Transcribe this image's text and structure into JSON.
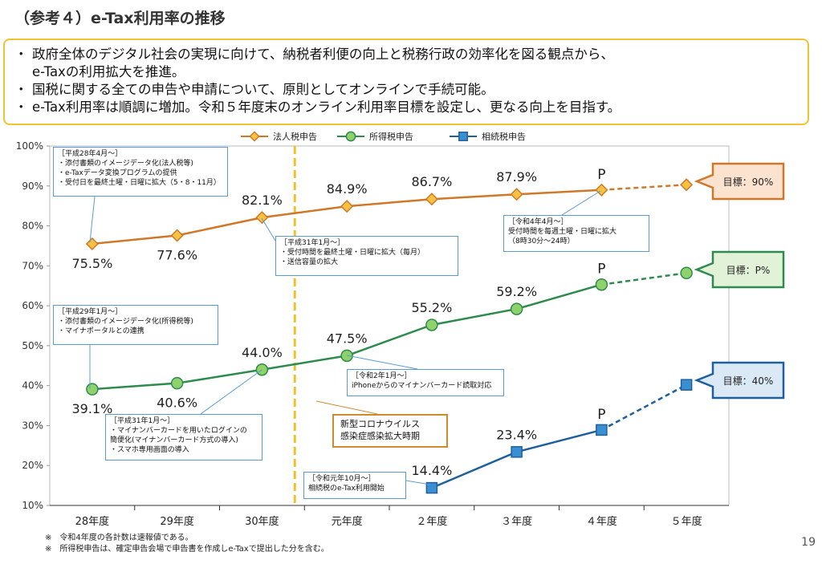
{
  "page": {
    "title": "（参考４）e-Tax利用率の推移",
    "page_number": "19",
    "bullets": [
      "政府全体のデジタル社会の実現に向けて、納税者利便の向上と税務行政の効率化を図る観点から、",
      "e-Taxの利用拡大を推進。",
      "国税に関する全ての申告や申請について、原則としてオンラインで手続可能。",
      "e-Tax利用率は順調に増加。令和５年度末のオンライン利用率目標を設定し、更なる向上を目指す。"
    ],
    "bullet_marker": "・",
    "notes": [
      "※　令和4年度の各計数は速報値である。",
      "※　所得税申告は、確定申告会場で申告書を作成しe-Taxで提出した分を含む。"
    ]
  },
  "chart_data": {
    "type": "line",
    "categories": [
      "28年度",
      "29年度",
      "30年度",
      "元年度",
      "２年度",
      "３年度",
      "４年度",
      "５年度"
    ],
    "ylim": [
      10,
      100
    ],
    "yticks": [
      "10%",
      "20%",
      "30%",
      "40%",
      "50%",
      "60%",
      "70%",
      "80%",
      "90%",
      "100%"
    ],
    "legend_position": "top",
    "series": [
      {
        "name": "法人税申告",
        "color": "#d0782a",
        "fill": "#f5c242",
        "marker": "diamond",
        "values": [
          75.5,
          77.6,
          82.1,
          84.9,
          86.7,
          87.9,
          89.0,
          90.3
        ],
        "labels": [
          "75.5%",
          "77.6%",
          "82.1%",
          "84.9%",
          "86.7%",
          "87.9%",
          "P",
          ""
        ],
        "dashed_from_index": 6
      },
      {
        "name": "所得税申告",
        "color": "#2e8b4e",
        "fill": "#8fd16a",
        "marker": "circle",
        "values": [
          39.1,
          40.6,
          44.0,
          47.5,
          55.2,
          59.2,
          65.3,
          68.2
        ],
        "labels": [
          "39.1%",
          "40.6%",
          "44.0%",
          "47.5%",
          "55.2%",
          "59.2%",
          "P",
          ""
        ],
        "dashed_from_index": 6
      },
      {
        "name": "相続税申告",
        "color": "#1f5f9e",
        "fill": "#3a8fd3",
        "marker": "square",
        "values": [
          null,
          null,
          null,
          null,
          14.4,
          23.4,
          28.9,
          40.2
        ],
        "labels": [
          "",
          "",
          "",
          "",
          "14.4%",
          "23.4%",
          "P",
          ""
        ],
        "dashed_from_index": 6
      }
    ],
    "targets": [
      {
        "text": "目標：90%",
        "border": "#d0782a",
        "bg": "#fbe3d0"
      },
      {
        "text": "目標：P%",
        "border": "#2e8b4e",
        "bg": "#e2f2d9"
      },
      {
        "text": "目標：40%",
        "border": "#1f5f9e",
        "bg": "#dbe8f5"
      }
    ],
    "vertical_marker_category": "元年度",
    "annotations": [
      {
        "lines": [
          "［平成28年4月～］",
          "・添付書類のイメージデータ化(法人税等)",
          "・e-Taxデータ変換プログラムの提供",
          "・受付日を最終土曜・日曜に拡大（5・8・11月）"
        ]
      },
      {
        "lines": [
          "［平成31年1月～］",
          "・受付時間を最終土曜・日曜に拡大（毎月）",
          "・送信容量の拡大"
        ]
      },
      {
        "lines": [
          "［令和4年4月～］",
          "受付時間を毎週土曜・日曜に拡大",
          "（8時30分～24時）"
        ]
      },
      {
        "lines": [
          "［平成29年1月～］",
          "・添付書類のイメージデータ化(所得税等)",
          "・マイナポータルとの連携"
        ]
      },
      {
        "lines": [
          "［令和2年1月～］",
          "iPhoneからのマイナンバーカード読取対応"
        ]
      },
      {
        "lines": [
          "［平成31年1月～］",
          "・マイナンバーカードを用いたログインの",
          "簡便化(マイナンバーカード方式の導入)",
          "・スマホ専用画面の導入"
        ]
      },
      {
        "lines": [
          "［令和元年10月～］",
          "相続税のe-Tax利用開始"
        ]
      },
      {
        "lines": [
          "新型コロナウイルス",
          "感染症感染拡大時期"
        ]
      }
    ]
  }
}
